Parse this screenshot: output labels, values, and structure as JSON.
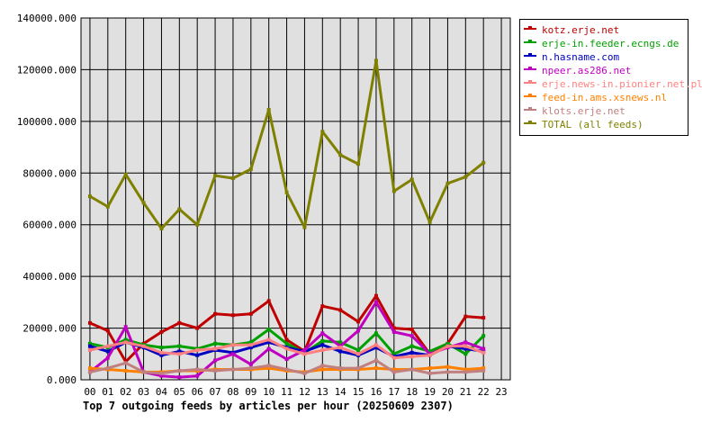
{
  "chart_data": {
    "type": "line",
    "title": "Top 7 outgoing feeds by articles per hour (20250609 2307)",
    "x": [
      "00",
      "01",
      "02",
      "03",
      "04",
      "05",
      "06",
      "07",
      "08",
      "09",
      "10",
      "11",
      "12",
      "13",
      "14",
      "15",
      "16",
      "17",
      "18",
      "19",
      "20",
      "21",
      "22",
      "23"
    ],
    "ylim": [
      0,
      140000
    ],
    "yticks": [
      "0.000",
      "20000.000",
      "40000.000",
      "60000.000",
      "80000.000",
      "100000.000",
      "120000.000",
      "140000.000"
    ],
    "grid": true,
    "legend_position": "right",
    "series": [
      {
        "name": "kotz.erje.net",
        "color": "#c00000",
        "values": [
          22000,
          19000,
          7000,
          14000,
          18500,
          22000,
          20000,
          25500,
          25000,
          25500,
          30500,
          15500,
          11000,
          28500,
          27000,
          22500,
          32500,
          20000,
          19500,
          10000,
          14000,
          24500,
          24000,
          null
        ]
      },
      {
        "name": "erje-in.feeder.ecngs.de",
        "color": "#00a000",
        "values": [
          14000,
          12500,
          15500,
          13500,
          12500,
          13000,
          12000,
          14000,
          13500,
          14500,
          19500,
          14000,
          10500,
          15000,
          14500,
          11500,
          18000,
          10000,
          13000,
          11000,
          14000,
          10000,
          17000,
          null
        ]
      },
      {
        "name": "n.hasname.com",
        "color": "#0000c0",
        "values": [
          13000,
          11000,
          14500,
          12500,
          9500,
          11000,
          9500,
          11500,
          10500,
          12500,
          14500,
          12500,
          11000,
          13500,
          11000,
          9500,
          12500,
          9000,
          10500,
          9500,
          13000,
          12000,
          11000,
          null
        ]
      },
      {
        "name": "npeer.as286.net",
        "color": "#c000c0",
        "values": [
          3000,
          8500,
          20500,
          3000,
          1500,
          1000,
          1500,
          7500,
          10000,
          6000,
          12000,
          8000,
          11500,
          18000,
          13000,
          19000,
          30000,
          18500,
          17000,
          10000,
          12500,
          14500,
          12000,
          null
        ]
      },
      {
        "name": "erje.news-in.pionier.net.pl",
        "color": "#ff8080",
        "values": [
          11500,
          13000,
          14500,
          13000,
          10500,
          10000,
          11500,
          12000,
          13500,
          13500,
          15500,
          12000,
          10000,
          11500,
          12500,
          10000,
          13500,
          8500,
          9000,
          9500,
          13000,
          13000,
          10500,
          null
        ]
      },
      {
        "name": "feed-in.ams.xsnews.nl",
        "color": "#ff8000",
        "values": [
          4500,
          4000,
          3500,
          3000,
          3000,
          3500,
          3500,
          4000,
          4000,
          4000,
          4500,
          3500,
          3000,
          4000,
          4000,
          4000,
          4500,
          4000,
          4000,
          4500,
          5000,
          4000,
          4500,
          null
        ]
      },
      {
        "name": "klots.erje.net",
        "color": "#c08080",
        "values": [
          3000,
          4500,
          6500,
          3000,
          2500,
          3500,
          4000,
          3500,
          4000,
          4500,
          5500,
          4000,
          2500,
          5500,
          4500,
          4500,
          7500,
          3000,
          4000,
          2500,
          3000,
          3000,
          3500,
          null
        ]
      },
      {
        "name": "TOTAL (all feeds)",
        "color": "#808000",
        "values": [
          71000,
          67000,
          79500,
          68500,
          58500,
          66000,
          60000,
          79000,
          78000,
          81500,
          104500,
          72500,
          59000,
          96000,
          87000,
          83500,
          123500,
          73000,
          77500,
          61000,
          76000,
          78500,
          84000,
          null
        ]
      }
    ]
  }
}
